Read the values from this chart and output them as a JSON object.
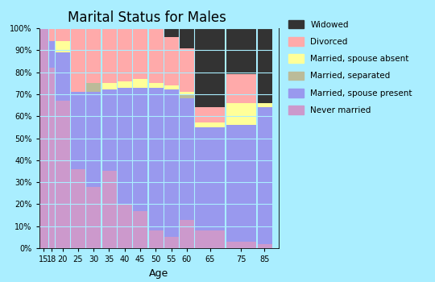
{
  "title": "Marital Status for Males",
  "xlabel": "Age",
  "categories": [
    "Never married",
    "Married, spouse present",
    "Married, separated",
    "Married, spouse absent",
    "Divorced",
    "Widowed"
  ],
  "colors": [
    "#cc99cc",
    "#9999ee",
    "#bbbb99",
    "#ffff99",
    "#ffaaaa",
    "#333333"
  ],
  "age_starts": [
    15,
    18,
    20,
    25,
    30,
    35,
    40,
    45,
    50,
    55,
    60,
    65,
    75,
    85
  ],
  "age_widths": [
    3,
    2,
    5,
    5,
    5,
    5,
    5,
    5,
    5,
    5,
    5,
    10,
    10,
    5
  ],
  "age_tick_labels": [
    "15",
    "18",
    "20",
    "25",
    "30",
    "35",
    "40",
    "45",
    "50",
    "55",
    "60",
    "65",
    "75",
    "85"
  ],
  "data": {
    "Never married": [
      100,
      82,
      67,
      36,
      28,
      35,
      20,
      17,
      8,
      5,
      13,
      8,
      3,
      2
    ],
    "Married, spouse present": [
      0,
      12,
      22,
      35,
      43,
      37,
      53,
      56,
      65,
      67,
      55,
      47,
      53,
      62
    ],
    "Married, separated": [
      0,
      0,
      0,
      0,
      4,
      0,
      0,
      0,
      0,
      0,
      2,
      0,
      0,
      0
    ],
    "Married, spouse absent": [
      0,
      0,
      5,
      0,
      0,
      3,
      3,
      4,
      2,
      2,
      1,
      2,
      10,
      2
    ],
    "Divorced": [
      0,
      6,
      6,
      29,
      25,
      25,
      24,
      23,
      25,
      22,
      20,
      7,
      13,
      0
    ],
    "Widowed": [
      0,
      0,
      0,
      0,
      0,
      0,
      0,
      0,
      0,
      4,
      9,
      36,
      21,
      34
    ]
  },
  "background_color": "#aaeeff",
  "yticks": [
    0,
    10,
    20,
    30,
    40,
    50,
    60,
    70,
    80,
    90,
    100
  ],
  "ylim": [
    0,
    100
  ],
  "xlim": [
    15,
    92
  ]
}
